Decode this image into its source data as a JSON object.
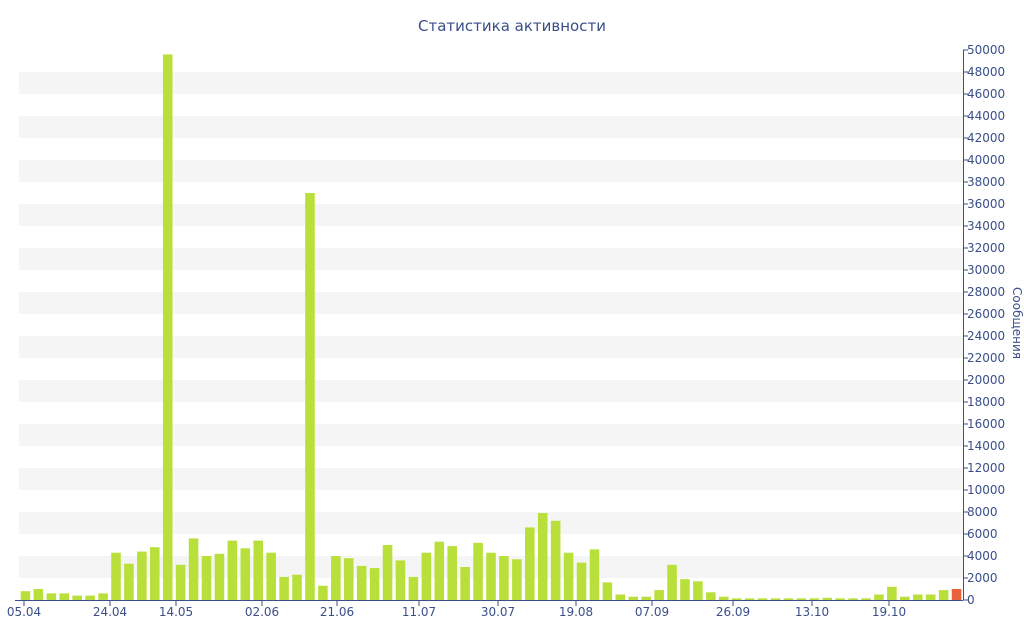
{
  "chart_data": {
    "type": "bar",
    "title": "Статистика активности",
    "ylabel": "Сообщения",
    "ylim": [
      0,
      50000
    ],
    "yticks": [
      0,
      2000,
      4000,
      6000,
      8000,
      10000,
      12000,
      14000,
      16000,
      18000,
      20000,
      22000,
      24000,
      26000,
      28000,
      30000,
      32000,
      34000,
      36000,
      38000,
      40000,
      42000,
      44000,
      46000,
      48000,
      50000
    ],
    "xtick_labels": [
      "05.04",
      "24.04",
      "14.05",
      "02.06",
      "21.06",
      "11.07",
      "30.07",
      "19.08",
      "07.09",
      "26.09",
      "13.10",
      "19.10"
    ],
    "grid": "horizontal bands",
    "colors": {
      "bar": "#b9e03a",
      "highlight": "#e8613c",
      "text": "#3a4f8a",
      "band": "#f5f5f5"
    },
    "values": [
      800,
      1000,
      600,
      600,
      400,
      400,
      600,
      4300,
      3300,
      4400,
      4800,
      49600,
      3200,
      5600,
      4000,
      4200,
      5400,
      4700,
      5400,
      4300,
      2100,
      2300,
      37000,
      1300,
      4000,
      3800,
      3100,
      2900,
      5000,
      3600,
      2100,
      4300,
      5300,
      4900,
      3000,
      5200,
      4300,
      4000,
      3700,
      6600,
      7900,
      7200,
      4300,
      3400,
      4600,
      1600,
      500,
      300,
      300,
      900,
      3200,
      1900,
      1700,
      700,
      300,
      150,
      150,
      150,
      150,
      150,
      150,
      150,
      200,
      150,
      150,
      150,
      500,
      1200,
      300,
      500,
      500,
      900,
      1000
    ],
    "highlight_index": 72
  }
}
